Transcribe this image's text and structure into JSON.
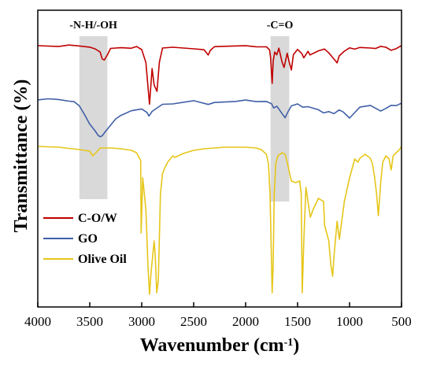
{
  "chart_data": {
    "type": "line",
    "xlabel": "Wavenumber (cm",
    "xlabel_sup": "-1",
    "xlabel_close": ")",
    "ylabel": "Transmittance (%)",
    "xlim": [
      4000,
      500
    ],
    "x_reversed": true,
    "y_ticks_shown": false,
    "x_ticks": [
      {
        "value": 4000,
        "label": "4000"
      },
      {
        "value": 3500,
        "label": "3500"
      },
      {
        "value": 3000,
        "label": "3000"
      },
      {
        "value": 2500,
        "label": "2500"
      },
      {
        "value": 2000,
        "label": "2000"
      },
      {
        "value": 1500,
        "label": "1500"
      },
      {
        "value": 1000,
        "label": "1000"
      },
      {
        "value": 500,
        "label": "500"
      }
    ],
    "bands": [
      {
        "label": "-N-H/-OH",
        "x_start": 3600,
        "x_end": 3330,
        "color": "#d9d9d9"
      },
      {
        "label": "-C=O",
        "x_start": 1760,
        "x_end": 1580,
        "color": "#d9d9d9"
      }
    ],
    "legend_position": "bottom-left",
    "series": [
      {
        "name": "C-O/W",
        "color": "#c00000",
        "offset": 66,
        "x": [
          4000,
          3800,
          3700,
          3600,
          3500,
          3450,
          3400,
          3380,
          3360,
          3330,
          3300,
          3200,
          3100,
          3050,
          3000,
          2960,
          2925,
          2900,
          2880,
          2853,
          2830,
          2800,
          2700,
          2500,
          2400,
          2360,
          2340,
          2300,
          2200,
          2000,
          1900,
          1800,
          1770,
          1760,
          1745,
          1735,
          1720,
          1700,
          1680,
          1650,
          1630,
          1600,
          1580,
          1560,
          1540,
          1500,
          1460,
          1440,
          1400,
          1380,
          1300,
          1240,
          1200,
          1160,
          1120,
          1100,
          1050,
          1000,
          950,
          900,
          800,
          750,
          700,
          650,
          600,
          550,
          500
        ],
        "y": [
          0,
          1,
          0,
          1,
          2,
          4,
          9,
          16,
          18,
          12,
          4,
          2,
          3,
          2,
          5,
          22,
          74,
          30,
          50,
          58,
          22,
          4,
          1,
          3,
          6,
          12,
          5,
          2,
          1,
          0,
          1,
          2,
          6,
          14,
          48,
          20,
          8,
          12,
          4,
          20,
          28,
          10,
          22,
          30,
          12,
          4,
          10,
          16,
          7,
          12,
          6,
          4,
          10,
          16,
          22,
          14,
          8,
          3,
          4,
          2,
          2,
          4,
          1,
          2,
          6,
          3,
          0
        ]
      },
      {
        "name": "GO",
        "color": "#3f5fa6",
        "offset": 132,
        "x": [
          4000,
          3900,
          3800,
          3700,
          3650,
          3600,
          3550,
          3500,
          3450,
          3420,
          3400,
          3380,
          3350,
          3300,
          3250,
          3200,
          3100,
          3000,
          2950,
          2930,
          2900,
          2800,
          2700,
          2500,
          2360,
          2300,
          2100,
          2000,
          1900,
          1800,
          1750,
          1730,
          1700,
          1650,
          1620,
          1600,
          1560,
          1500,
          1450,
          1400,
          1300,
          1250,
          1200,
          1150,
          1100,
          1060,
          1000,
          900,
          800,
          700,
          650,
          600,
          550,
          500
        ],
        "y": [
          0,
          -1,
          0,
          1,
          3,
          8,
          18,
          30,
          38,
          44,
          46,
          45,
          40,
          32,
          25,
          20,
          14,
          12,
          16,
          20,
          14,
          6,
          4,
          2,
          6,
          3,
          2,
          1,
          1,
          2,
          4,
          10,
          8,
          18,
          22,
          16,
          8,
          6,
          10,
          8,
          12,
          16,
          14,
          18,
          12,
          16,
          24,
          10,
          8,
          14,
          10,
          6,
          8,
          4
        ]
      },
      {
        "name": "Olive Oil",
        "color": "#e6c619",
        "offset": 187,
        "x": [
          4000,
          3800,
          3600,
          3500,
          3470,
          3440,
          3400,
          3300,
          3200,
          3100,
          3050,
          3010,
          3005,
          2990,
          2960,
          2940,
          2925,
          2910,
          2880,
          2870,
          2855,
          2840,
          2820,
          2800,
          2780,
          2750,
          2700,
          2680,
          2600,
          2500,
          2400,
          2300,
          2200,
          2100,
          2000,
          1900,
          1850,
          1800,
          1780,
          1765,
          1755,
          1745,
          1735,
          1725,
          1710,
          1690,
          1650,
          1620,
          1600,
          1580,
          1560,
          1520,
          1480,
          1465,
          1455,
          1440,
          1420,
          1400,
          1377,
          1350,
          1300,
          1250,
          1240,
          1200,
          1180,
          1163,
          1150,
          1120,
          1098,
          1080,
          1050,
          1000,
          950,
          920,
          900,
          850,
          800,
          780,
          760,
          740,
          723,
          700,
          680,
          650,
          620,
          600,
          580,
          550,
          520,
          500
        ],
        "y": [
          0,
          1,
          4,
          6,
          12,
          8,
          2,
          2,
          3,
          5,
          8,
          18,
          110,
          40,
          80,
          150,
          188,
          160,
          120,
          140,
          186,
          170,
          60,
          35,
          28,
          20,
          12,
          14,
          9,
          5,
          3,
          2,
          1,
          1,
          1,
          2,
          4,
          10,
          22,
          60,
          120,
          186,
          150,
          60,
          22,
          12,
          8,
          10,
          20,
          32,
          44,
          46,
          44,
          60,
          186,
          120,
          52,
          70,
          90,
          80,
          66,
          70,
          100,
          120,
          150,
          165,
          140,
          95,
          118,
          100,
          70,
          40,
          16,
          20,
          15,
          10,
          15,
          22,
          38,
          60,
          88,
          45,
          20,
          12,
          16,
          30,
          12,
          8,
          4,
          0
        ]
      }
    ]
  }
}
